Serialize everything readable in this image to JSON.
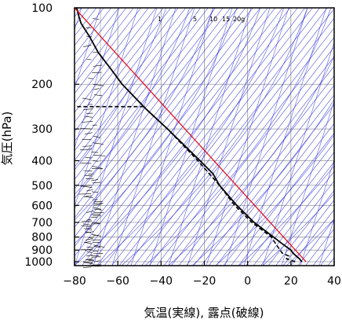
{
  "chart_data": {
    "type": "skew-t",
    "title": "",
    "xlabel": "気温(実線), 露点(破線)",
    "ylabel": "気圧(hPa)",
    "xlim": [
      -80,
      40
    ],
    "ylim": [
      1050,
      100
    ],
    "y_scale": "log",
    "grid": true,
    "x_ticks": [
      -80,
      -60,
      -40,
      -20,
      0,
      20,
      40
    ],
    "x_tick_labels": [
      "−80",
      "−60",
      "−40",
      "−20",
      "0",
      "20",
      "40"
    ],
    "y_ticks": [
      100,
      200,
      300,
      400,
      500,
      600,
      700,
      800,
      900,
      1000
    ],
    "y_tick_labels": [
      "100",
      "200",
      "300",
      "400",
      "500",
      "600",
      "700",
      "800",
      "900",
      "1000"
    ],
    "mixing_ratio_labels": [
      "1",
      "5",
      "10",
      "15",
      "20g"
    ],
    "colors": {
      "temperature": "#000000",
      "dewpoint": "#000000",
      "reference_line": "#e8000b",
      "skewed_lines": "#2a2ae0",
      "grid": "#9a9a9a"
    },
    "series": [
      {
        "style": "solid",
        "p": [
          1000,
          975,
          950,
          925,
          900,
          850,
          800,
          700,
          600,
          500,
          450,
          400,
          350,
          300,
          250,
          200,
          175,
          150,
          130,
          115,
          108,
          100
        ],
        "x": [
          25,
          24,
          22.5,
          21,
          20,
          16,
          12,
          3,
          -5,
          -13,
          -16,
          -22,
          -29,
          -37,
          -47,
          -58,
          -63,
          -69,
          -73,
          -77,
          -78,
          -79
        ]
      },
      {
        "style": "dashed",
        "p": [
          1000,
          975,
          950,
          925,
          900,
          850,
          800,
          700,
          600,
          500,
          400,
          300,
          260,
          245
        ],
        "x": [
          22,
          18,
          19,
          16,
          15,
          13,
          11,
          2,
          -6,
          -13,
          -23,
          -37,
          -45,
          -48
        ]
      },
      {
        "style": "dashed-horizontal",
        "p": [
          245,
          245
        ],
        "x": [
          -48,
          -80
        ]
      },
      {
        "style": "reference",
        "p": [
          1000,
          100
        ],
        "x": [
          27,
          -80
        ]
      }
    ],
    "wind_barbs": "pressure levels 100-1050 hPa plotted at x ≈ -68"
  }
}
